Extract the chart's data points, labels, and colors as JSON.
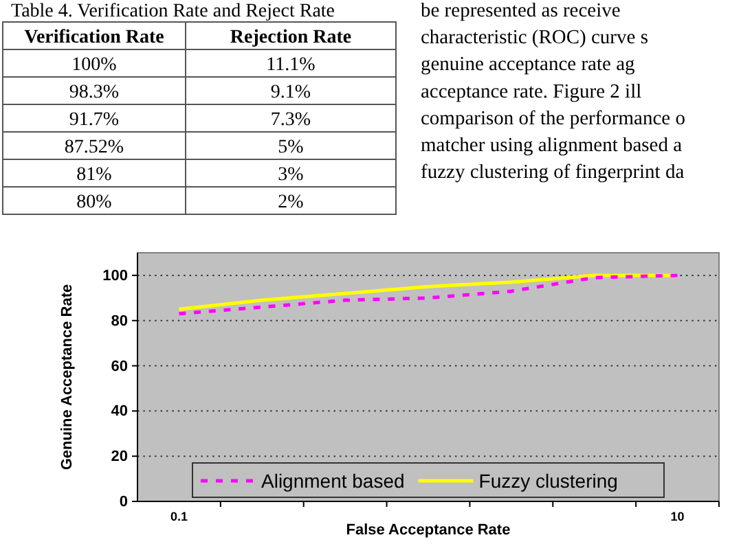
{
  "chart_data": [
    {
      "type": "other",
      "title": "Table 4. Verification Rate and Reject Rate",
      "annotations": [
        "Verification Rate",
        "Rejection Rate",
        "100%",
        "11.1%",
        "98.3%",
        "9.1%",
        "91.7%",
        "7.3%",
        "87.52%",
        "5%",
        "81%",
        "3%",
        "80%",
        "2%"
      ]
    },
    {
      "type": "other",
      "annotations": [
        "be represented as receive",
        "characteristic (ROC) curve s",
        "genuine acceptance rate ag",
        "acceptance rate. Figure 2 ill",
        "comparison of the performance o",
        "matcher using alignment based a",
        "fuzzy clustering of fingerprint da"
      ]
    },
    {
      "type": "line",
      "xlabel": "False Acceptance Rate",
      "ylabel": "Genuine Acceptance Rate",
      "categories": [
        "0.1",
        null,
        null,
        null,
        null,
        null,
        "10"
      ],
      "series": [
        {
          "name": "Alignment based",
          "color": "#ff00ff",
          "line_style": "dashed",
          "values": [
            83,
            86,
            89,
            90,
            93,
            99,
            100
          ]
        },
        {
          "name": "Fuzzy clustering",
          "color": "#ffff00",
          "line_style": "solid",
          "values": [
            85,
            89,
            92,
            95,
            97,
            100,
            100
          ]
        }
      ],
      "ylim": [
        0,
        110
      ],
      "yticks": [
        0,
        20,
        40,
        60,
        80,
        100
      ],
      "grid": "y",
      "legend": "bottom"
    }
  ]
}
